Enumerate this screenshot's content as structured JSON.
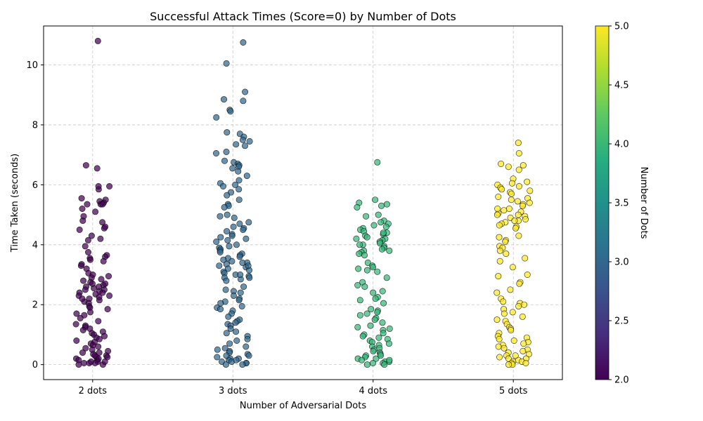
{
  "chart_data": {
    "type": "scatter",
    "title": "Successful Attack Times (Score=0) by Number of Dots",
    "xlabel": "Number of Adversarial Dots",
    "ylabel": "Time Taken (seconds)",
    "categories": [
      "2 dots",
      "3 dots",
      "4 dots",
      "5 dots"
    ],
    "category_dots": [
      2,
      3,
      4,
      5
    ],
    "ylim": [
      -0.5,
      11.3
    ],
    "yticks": [
      0,
      2,
      4,
      6,
      8,
      10
    ],
    "grid": true,
    "colorbar": {
      "label": "Number of Dots",
      "min": 2.0,
      "max": 5.0,
      "ticks": [
        "2.0",
        "2.5",
        "3.0",
        "3.5",
        "4.0",
        "4.5",
        "5.0"
      ],
      "colormap": "viridis"
    },
    "series": [
      {
        "category": "2 dots",
        "color": "#440154",
        "values": [
          10.8,
          6.65,
          6.55,
          5.95,
          5.85,
          5.95,
          5.55,
          5.5,
          5.45,
          5.4,
          5.35,
          5.35,
          5.35,
          5.2,
          5.1,
          4.95,
          4.8,
          4.75,
          4.6,
          4.55,
          4.5,
          4.3,
          4.2,
          4.15,
          3.95,
          3.75,
          3.65,
          3.6,
          3.55,
          3.5,
          3.45,
          3.35,
          3.3,
          3.2,
          3.05,
          3.0,
          2.95,
          2.9,
          2.85,
          2.8,
          2.75,
          2.7,
          2.65,
          2.6,
          2.55,
          2.5,
          2.45,
          2.4,
          2.35,
          2.3,
          2.25,
          2.2,
          2.15,
          2.1,
          2.05,
          1.95,
          1.9,
          1.85,
          1.75,
          1.7,
          1.65,
          1.55,
          1.45,
          1.35,
          1.3,
          1.25,
          1.2,
          1.15,
          1.1,
          1.05,
          1.0,
          0.95,
          0.9,
          0.85,
          0.8,
          0.75,
          0.7,
          0.65,
          0.6,
          0.55,
          0.5,
          0.45,
          0.4,
          0.35,
          0.3,
          0.25,
          0.2,
          0.15,
          0.1,
          0.05,
          0.0,
          2.6,
          2.5,
          2.4,
          2.3,
          2.7,
          2.2,
          0.3,
          0.2,
          0.1,
          0.05,
          0.4,
          0.15,
          0.25,
          0.0,
          0.05,
          0.1
        ]
      },
      {
        "category": "3 dots",
        "color": "#31688e",
        "values": [
          10.75,
          10.05,
          9.1,
          8.85,
          8.8,
          8.5,
          8.45,
          8.25,
          7.75,
          7.7,
          7.6,
          7.5,
          7.45,
          7.35,
          7.3,
          7.1,
          7.05,
          6.8,
          6.75,
          6.7,
          6.65,
          6.6,
          6.55,
          6.45,
          6.3,
          6.15,
          6.05,
          6.0,
          5.95,
          5.85,
          5.75,
          5.65,
          5.5,
          5.35,
          5.3,
          5.25,
          5.0,
          4.95,
          4.9,
          4.75,
          4.7,
          4.6,
          4.55,
          4.5,
          4.45,
          4.35,
          4.3,
          4.25,
          4.2,
          4.15,
          4.1,
          4.0,
          3.95,
          3.9,
          3.85,
          3.8,
          3.75,
          3.7,
          3.65,
          3.6,
          3.55,
          3.5,
          3.45,
          3.4,
          3.35,
          3.3,
          3.25,
          3.2,
          3.15,
          3.1,
          3.05,
          3.0,
          2.95,
          2.9,
          2.85,
          2.8,
          2.6,
          2.5,
          2.45,
          2.4,
          2.3,
          2.2,
          2.15,
          2.1,
          2.05,
          1.95,
          1.9,
          1.85,
          1.8,
          1.7,
          1.6,
          1.5,
          1.45,
          1.4,
          1.35,
          1.3,
          1.2,
          1.1,
          1.05,
          0.95,
          0.85,
          0.8,
          0.7,
          0.6,
          0.55,
          0.5,
          0.45,
          0.4,
          0.35,
          0.3,
          0.25,
          0.2,
          0.15,
          0.1,
          0.05,
          0.0,
          3.3,
          3.0,
          2.9,
          3.4,
          0.1,
          0.2,
          0.05,
          0.3,
          0.0,
          0.15
        ]
      },
      {
        "category": "4 dots",
        "color": "#35b779",
        "values": [
          6.75,
          5.5,
          5.4,
          5.35,
          5.3,
          5.25,
          5.0,
          4.95,
          4.8,
          4.75,
          4.7,
          4.65,
          4.6,
          4.55,
          4.5,
          4.45,
          4.4,
          4.35,
          4.3,
          4.25,
          4.2,
          4.15,
          4.1,
          4.05,
          4.0,
          3.95,
          3.9,
          3.85,
          3.8,
          3.75,
          3.7,
          3.65,
          3.4,
          3.3,
          3.25,
          3.2,
          3.15,
          3.1,
          2.9,
          2.75,
          2.65,
          2.6,
          2.45,
          2.4,
          2.25,
          2.2,
          2.15,
          2.05,
          1.85,
          1.8,
          1.75,
          1.7,
          1.65,
          1.55,
          1.5,
          1.4,
          1.3,
          1.25,
          1.2,
          1.15,
          1.05,
          1.0,
          0.95,
          0.9,
          0.85,
          0.8,
          0.75,
          0.7,
          0.65,
          0.6,
          0.55,
          0.5,
          0.45,
          0.4,
          0.35,
          0.3,
          0.25,
          0.2,
          0.15,
          0.1,
          0.05,
          0.0,
          4.2,
          4.0,
          3.8,
          4.4,
          0.2,
          0.1,
          0.05,
          0.3,
          0.0,
          0.15
        ]
      },
      {
        "category": "5 dots",
        "color": "#fde725",
        "values": [
          7.4,
          7.05,
          6.7,
          6.65,
          6.6,
          6.5,
          6.2,
          6.1,
          6.05,
          6.0,
          5.95,
          5.9,
          5.85,
          5.8,
          5.75,
          5.7,
          5.6,
          5.55,
          5.5,
          5.45,
          5.4,
          5.35,
          5.3,
          5.2,
          5.15,
          5.1,
          5.05,
          5.0,
          4.95,
          4.9,
          4.85,
          4.8,
          4.75,
          4.7,
          4.65,
          4.6,
          4.55,
          4.3,
          4.25,
          4.15,
          4.1,
          3.95,
          3.9,
          3.8,
          3.7,
          3.55,
          3.45,
          3.25,
          3.0,
          2.95,
          2.75,
          2.7,
          2.5,
          2.4,
          2.2,
          2.1,
          2.05,
          2.0,
          1.95,
          1.85,
          1.75,
          1.7,
          1.6,
          1.5,
          1.45,
          1.35,
          1.25,
          1.2,
          1.15,
          1.05,
          0.95,
          0.9,
          0.85,
          0.8,
          0.75,
          0.7,
          0.65,
          0.6,
          0.55,
          0.5,
          0.45,
          0.4,
          0.35,
          0.3,
          0.25,
          0.2,
          0.15,
          0.1,
          0.05,
          0.0,
          5.0,
          4.8,
          5.2,
          0.3,
          0.2,
          0.1,
          0.05,
          0.0
        ]
      }
    ]
  }
}
